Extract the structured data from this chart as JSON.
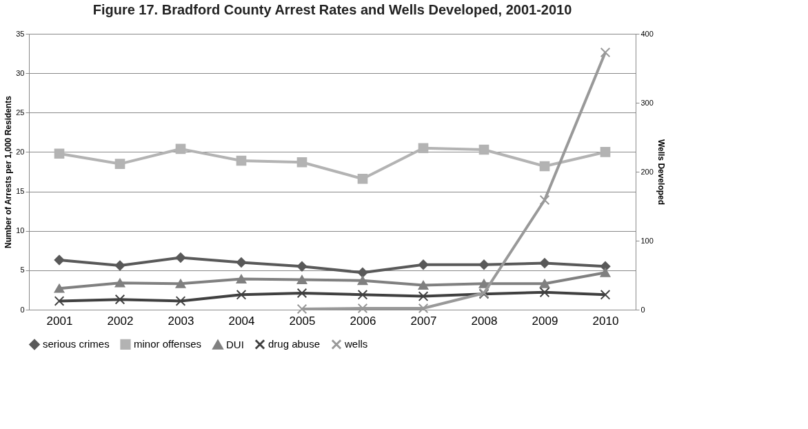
{
  "chart_data": {
    "type": "line",
    "title": "Figure 17. Bradford County Arrest Rates and  Wells Developed, 2001-2010",
    "ylabel": "Number of Arrests per 1,000 Residents",
    "y2label": "Wells Developed",
    "categories": [
      "2001",
      "2002",
      "2003",
      "2004",
      "2005",
      "2006",
      "2007",
      "2008",
      "2009",
      "2010"
    ],
    "series": [
      {
        "name": "serious crimes",
        "color": "#595959",
        "marker": "diamond",
        "values": [
          6.3,
          5.6,
          6.6,
          6.0,
          5.5,
          4.7,
          5.7,
          5.7,
          5.9,
          5.5
        ]
      },
      {
        "name": "minor offenses",
        "color": "#b3b3b3",
        "marker": "square",
        "values": [
          19.8,
          18.5,
          20.4,
          18.9,
          18.7,
          16.6,
          20.5,
          20.3,
          18.2,
          20.0
        ]
      },
      {
        "name": "DUI",
        "color": "#808080",
        "marker": "triangle",
        "values": [
          2.7,
          3.4,
          3.3,
          3.9,
          3.8,
          3.7,
          3.1,
          3.3,
          3.3,
          4.7
        ]
      },
      {
        "name": "drug abuse",
        "color": "#404040",
        "marker": "cross",
        "values": [
          1.1,
          1.3,
          1.1,
          1.9,
          2.1,
          1.9,
          1.7,
          2.0,
          2.2,
          1.9
        ]
      },
      {
        "name": "wells",
        "color": "#999999",
        "marker": "cross",
        "axis": "y2",
        "values": [
          null,
          null,
          null,
          null,
          1,
          2,
          2,
          24,
          159,
          373
        ]
      }
    ],
    "ylim": [
      0,
      35
    ],
    "yticks": [
      0,
      5,
      10,
      15,
      20,
      25,
      30,
      35
    ],
    "y2lim": [
      0,
      400
    ],
    "y2ticks": [
      0,
      100,
      200,
      300,
      400
    ],
    "grid": "y",
    "legend": "bottom",
    "line_style": "solid"
  }
}
